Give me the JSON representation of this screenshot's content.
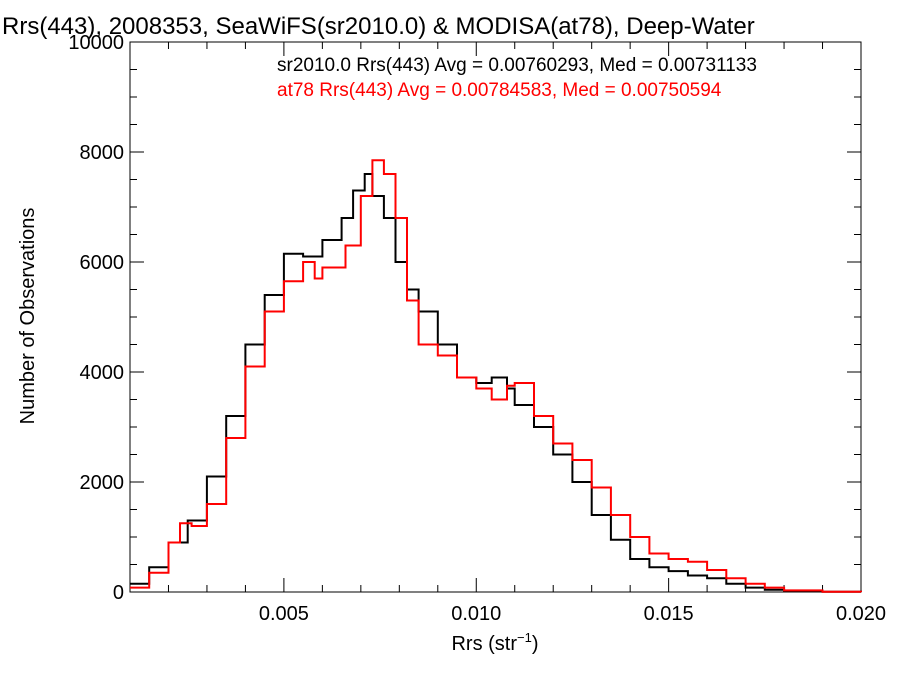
{
  "chart_data": {
    "type": "line",
    "title": "Rrs(443), 2008353, SeaWiFS(sr2010.0) & MODISA(at78), Deep-Water",
    "xlabel_main": "Rrs (str",
    "xlabel_sup": "−1",
    "xlabel_close": ")",
    "ylabel": "Number of Observations",
    "xlim": [
      0.001,
      0.02
    ],
    "ylim": [
      0,
      10000
    ],
    "x_ticks": [
      0.005,
      0.01,
      0.015,
      0.02
    ],
    "x_tick_labels": [
      "0.005",
      "0.010",
      "0.015",
      "0.020"
    ],
    "y_ticks": [
      0,
      2000,
      4000,
      6000,
      8000,
      10000
    ],
    "y_tick_labels": [
      "0",
      "2000",
      "4000",
      "6000",
      "8000",
      "10000"
    ],
    "annotations": [
      {
        "text": "sr2010.0 Rrs(443) Avg = 0.00760293, Med = 0.00731133",
        "color": "#000000"
      },
      {
        "text": "at78 Rrs(443) Avg = 0.00784583, Med = 0.00750594",
        "color": "#ff0000"
      }
    ],
    "series": [
      {
        "color": "#000000",
        "x": [
          0.001,
          0.0015,
          0.002,
          0.0025,
          0.003,
          0.0035,
          0.004,
          0.0045,
          0.005,
          0.0055,
          0.006,
          0.0065,
          0.0068,
          0.0071,
          0.0073,
          0.0076,
          0.0079,
          0.0082,
          0.0085,
          0.009,
          0.0095,
          0.01,
          0.0104,
          0.0108,
          0.011,
          0.0115,
          0.012,
          0.0125,
          0.013,
          0.0135,
          0.014,
          0.0145,
          0.015,
          0.0155,
          0.016,
          0.0165,
          0.017,
          0.0175,
          0.018,
          0.019,
          0.02
        ],
        "y": [
          150,
          450,
          900,
          1300,
          2100,
          3200,
          4500,
          5400,
          6150,
          6100,
          6400,
          6800,
          7300,
          7600,
          7200,
          6800,
          6000,
          5500,
          5100,
          4500,
          3900,
          3800,
          3900,
          3700,
          3400,
          3000,
          2500,
          2000,
          1400,
          950,
          600,
          450,
          380,
          300,
          250,
          150,
          80,
          40,
          20,
          5,
          0
        ]
      },
      {
        "color": "#ff0000",
        "x": [
          0.001,
          0.0015,
          0.002,
          0.0023,
          0.0026,
          0.003,
          0.0035,
          0.004,
          0.0045,
          0.005,
          0.0055,
          0.0058,
          0.006,
          0.0063,
          0.0066,
          0.007,
          0.0073,
          0.0076,
          0.0079,
          0.0082,
          0.0085,
          0.009,
          0.0095,
          0.01,
          0.0104,
          0.0108,
          0.011,
          0.0115,
          0.012,
          0.0125,
          0.013,
          0.0135,
          0.014,
          0.0145,
          0.015,
          0.0155,
          0.016,
          0.0165,
          0.017,
          0.0175,
          0.018,
          0.019,
          0.02
        ],
        "y": [
          80,
          350,
          900,
          1250,
          1200,
          1600,
          2800,
          4100,
          5100,
          5650,
          6000,
          5700,
          5900,
          5900,
          6300,
          7200,
          7850,
          7600,
          6800,
          5300,
          4500,
          4300,
          3900,
          3700,
          3500,
          3750,
          3800,
          3200,
          2700,
          2400,
          1900,
          1400,
          1000,
          700,
          600,
          550,
          400,
          250,
          150,
          80,
          30,
          5,
          0
        ]
      }
    ]
  }
}
